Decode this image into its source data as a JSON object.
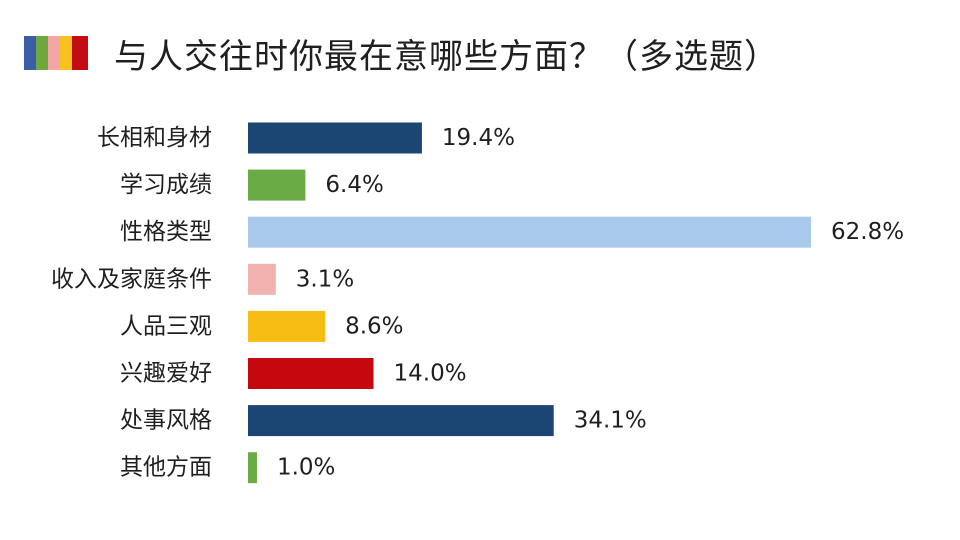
{
  "header": {
    "strip_colors": [
      "#3a5fa8",
      "#6da83c",
      "#f4a6a6",
      "#f7c21e",
      "#c40d12"
    ]
  },
  "chart_data": {
    "type": "bar",
    "orientation": "horizontal",
    "title": "与人交往时你最在意哪些方面？（多选题）",
    "categories": [
      "长相和身材",
      "学习成绩",
      "性格类型",
      "收入及家庭条件",
      "人品三观",
      "兴趣爱好",
      "处事风格",
      "其他方面"
    ],
    "values": [
      19.4,
      6.4,
      62.8,
      3.1,
      8.6,
      14.0,
      34.1,
      1.0
    ],
    "value_labels": [
      "19.4%",
      "6.4%",
      "62.8%",
      "3.1%",
      "8.6%",
      "14.0%",
      "34.1%",
      "1.0%"
    ],
    "colors": [
      "#1b4573",
      "#6aab46",
      "#a9c9ea",
      "#f2b3b0",
      "#f8bd12",
      "#c4080e",
      "#1b4573",
      "#6aab46"
    ],
    "xlim": [
      0,
      62.8
    ],
    "grid": false,
    "legend": "none",
    "xlabel": "",
    "ylabel": ""
  }
}
